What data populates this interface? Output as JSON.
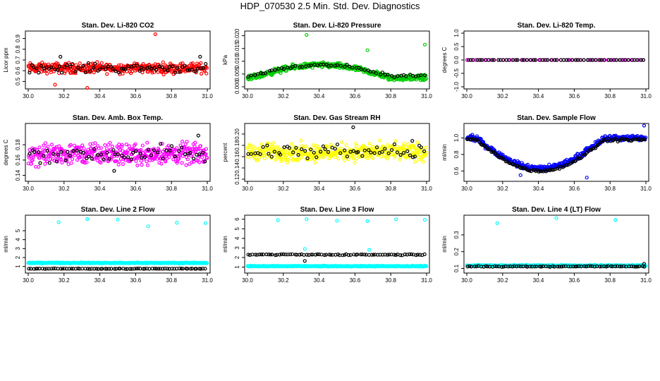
{
  "title": "HDP_070530  2.5 Min. Std. Dev. Diagnostics",
  "chart_data": [
    {
      "type": "scatter",
      "title": "Stan. Dev. Li-820 CO2",
      "ylabel": "Licor ppm",
      "xlim": [
        30.0,
        31.0
      ],
      "ylim": [
        0.45,
        0.95
      ],
      "xticks": [
        "30.0",
        "30.2",
        "30.4",
        "30.6",
        "30.8",
        "31.0"
      ],
      "yticks": [
        "0.5",
        "0.6",
        "0.7",
        "0.8",
        "0.9"
      ],
      "grid": false,
      "series": [
        {
          "color": "#ff0000",
          "band": {
            "mean": 0.625,
            "spread": 0.07
          },
          "count": 380,
          "points": [
            [
              30.71,
              0.94
            ],
            [
              30.33,
              0.44
            ],
            [
              30.15,
              0.47
            ]
          ]
        },
        {
          "color": "#000000",
          "band": {
            "mean": 0.625,
            "spread": 0.06
          },
          "count": 70,
          "points": [
            [
              30.18,
              0.73
            ],
            [
              30.96,
              0.73
            ]
          ]
        }
      ]
    },
    {
      "type": "scatter",
      "title": "Stan. Dev. Li-820 Pressure",
      "ylabel": "kPa",
      "xlim": [
        30.0,
        31.0
      ],
      "ylim": [
        0.0,
        0.021
      ],
      "xticks": [
        "30.0",
        "30.2",
        "30.4",
        "30.6",
        "30.8",
        "31.0"
      ],
      "yticks": [
        "0.000",
        "0.005",
        "0.010",
        "0.015",
        "0.020"
      ],
      "grid": false,
      "series": [
        {
          "color": "#00cc00",
          "profile": "hump",
          "base": 0.003,
          "peak": 0.0085,
          "spread": 0.0016,
          "count": 380,
          "points": [
            [
              30.33,
              0.0203
            ],
            [
              30.67,
              0.0143
            ],
            [
              30.99,
              0.0165
            ]
          ]
        },
        {
          "color": "#000000",
          "profile": "hump",
          "base": 0.004,
          "peak": 0.0085,
          "spread": 0.001,
          "count": 60,
          "points": []
        }
      ]
    },
    {
      "type": "scatter",
      "title": "Stan. Dev. Li-820 Temp.",
      "ylabel": "degrees C",
      "xlim": [
        30.0,
        31.0
      ],
      "ylim": [
        -1.0,
        1.0
      ],
      "xticks": [
        "30.0",
        "30.2",
        "30.4",
        "30.6",
        "30.8",
        "31.0"
      ],
      "yticks": [
        "-1.0",
        "-0.5",
        "0.0",
        "0.5",
        "1.0"
      ],
      "grid": false,
      "series": [
        {
          "color": "#ff00ff",
          "band": {
            "mean": 0.0,
            "spread": 0.0
          },
          "count": 60,
          "points": []
        },
        {
          "color": "#000000",
          "band": {
            "mean": 0.0,
            "spread": 0.0
          },
          "count": 60,
          "points": []
        }
      ]
    },
    {
      "type": "scatter",
      "title": "Stan. Dev. Amb. Box Temp.",
      "ylabel": "degrees C",
      "xlim": [
        30.0,
        31.0
      ],
      "ylim": [
        0.135,
        0.205
      ],
      "xticks": [
        "30.0",
        "30.2",
        "30.4",
        "30.6",
        "30.8",
        "31.0"
      ],
      "yticks": [
        "0.14",
        "0.16",
        "0.18"
      ],
      "grid": false,
      "series": [
        {
          "color": "#ff00ff",
          "band": {
            "mean": 0.168,
            "spread": 0.02
          },
          "count": 420,
          "points": []
        },
        {
          "color": "#000000",
          "band": {
            "mean": 0.168,
            "spread": 0.016
          },
          "count": 60,
          "points": [
            [
              30.48,
              0.146
            ],
            [
              30.95,
              0.192
            ]
          ]
        }
      ]
    },
    {
      "type": "scatter",
      "title": "Stan. Dev. Gas Stream RH",
      "ylabel": "percent",
      "xlim": [
        30.0,
        31.0
      ],
      "ylim": [
        0.12,
        0.215
      ],
      "xticks": [
        "30.0",
        "30.2",
        "30.4",
        "30.6",
        "30.8",
        "31.0"
      ],
      "yticks": [
        "0.12",
        "0.14",
        "0.16",
        "0.18",
        "0.20"
      ],
      "grid": false,
      "series": [
        {
          "color": "#ffff00",
          "band": {
            "mean": 0.168,
            "spread": 0.023
          },
          "count": 420,
          "points": []
        },
        {
          "color": "#000000",
          "band": {
            "mean": 0.168,
            "spread": 0.018
          },
          "count": 60,
          "points": [
            [
              30.59,
              0.212
            ],
            [
              30.92,
              0.188
            ]
          ]
        }
      ]
    },
    {
      "type": "scatter",
      "title": "Stan. Dev. Sample Flow",
      "ylabel": "ml/min",
      "xlim": [
        30.0,
        31.0
      ],
      "ylim": [
        0.5,
        1.15
      ],
      "xticks": [
        "30.0",
        "30.2",
        "30.4",
        "30.6",
        "30.8",
        "31.0"
      ],
      "yticks": [
        "0.6",
        "0.8",
        "1.0"
      ],
      "grid": false,
      "series": [
        {
          "color": "#0000ff",
          "profile": "valley",
          "base": 1.0,
          "low": 0.63,
          "spread": 0.05,
          "count": 420,
          "points": [
            [
              30.99,
              1.15
            ],
            [
              30.67,
              0.52
            ],
            [
              30.3,
              0.55
            ]
          ]
        },
        {
          "color": "#000000",
          "profile": "valley",
          "base": 0.98,
          "low": 0.6,
          "spread": 0.025,
          "count": 120,
          "points": []
        }
      ]
    },
    {
      "type": "scatter",
      "title": "Stan. Dev. Line 2 Flow",
      "ylabel": "ml/min",
      "xlim": [
        30.0,
        31.0
      ],
      "ylim": [
        0.5,
        6.5
      ],
      "xticks": [
        "30.0",
        "30.2",
        "30.4",
        "30.6",
        "30.8",
        "31.0"
      ],
      "yticks": [
        "1",
        "2",
        "3",
        "4",
        "5"
      ],
      "grid": false,
      "series": [
        {
          "color": "#00ffff",
          "band": {
            "mean": 1.4,
            "spread": 0.08
          },
          "count": 420,
          "points": [
            [
              30.17,
              5.95
            ],
            [
              30.33,
              6.3
            ],
            [
              30.5,
              6.25
            ],
            [
              30.67,
              5.5
            ],
            [
              30.83,
              5.9
            ],
            [
              30.99,
              5.85
            ]
          ]
        },
        {
          "color": "#000000",
          "band": {
            "mean": 0.75,
            "spread": 0.04
          },
          "count": 80,
          "points": []
        }
      ]
    },
    {
      "type": "scatter",
      "title": "Stan. Dev. Line 3 Flow",
      "ylabel": "ml/min",
      "xlim": [
        30.0,
        31.0
      ],
      "ylim": [
        0.6,
        6.2
      ],
      "xticks": [
        "30.0",
        "30.2",
        "30.4",
        "30.6",
        "30.8",
        "31.0"
      ],
      "yticks": [
        "1",
        "2",
        "3",
        "4",
        "5",
        "6"
      ],
      "grid": false,
      "series": [
        {
          "color": "#00ffff",
          "band": {
            "mean": 1.1,
            "spread": 0.07
          },
          "count": 420,
          "points": [
            [
              30.17,
              5.9
            ],
            [
              30.33,
              6.0
            ],
            [
              30.5,
              5.85
            ],
            [
              30.67,
              5.8
            ],
            [
              30.83,
              6.0
            ],
            [
              30.99,
              5.95
            ],
            [
              30.32,
              2.9
            ],
            [
              30.68,
              2.8
            ]
          ]
        },
        {
          "color": "#000000",
          "band": {
            "mean": 2.3,
            "spread": 0.08
          },
          "count": 80,
          "points": [
            [
              30.32,
              1.65
            ]
          ]
        }
      ]
    },
    {
      "type": "scatter",
      "title": "Stan. Dev. Line 4 (LT) Flow",
      "ylabel": "ml/min",
      "xlim": [
        30.0,
        31.0
      ],
      "ylim": [
        0.085,
        0.405
      ],
      "xticks": [
        "30.0",
        "30.2",
        "30.4",
        "30.6",
        "30.8",
        "31.0"
      ],
      "yticks": [
        "0.1",
        "0.2",
        "0.3"
      ],
      "grid": false,
      "series": [
        {
          "color": "#00ffff",
          "band": {
            "mean": 0.117,
            "spread": 0.006
          },
          "count": 420,
          "points": [
            [
              30.17,
              0.37
            ],
            [
              30.5,
              0.4
            ],
            [
              30.83,
              0.39
            ]
          ]
        },
        {
          "color": "#000000",
          "band": {
            "mean": 0.112,
            "spread": 0.004
          },
          "count": 80,
          "points": [
            [
              30.99,
              0.128
            ]
          ]
        }
      ]
    }
  ]
}
